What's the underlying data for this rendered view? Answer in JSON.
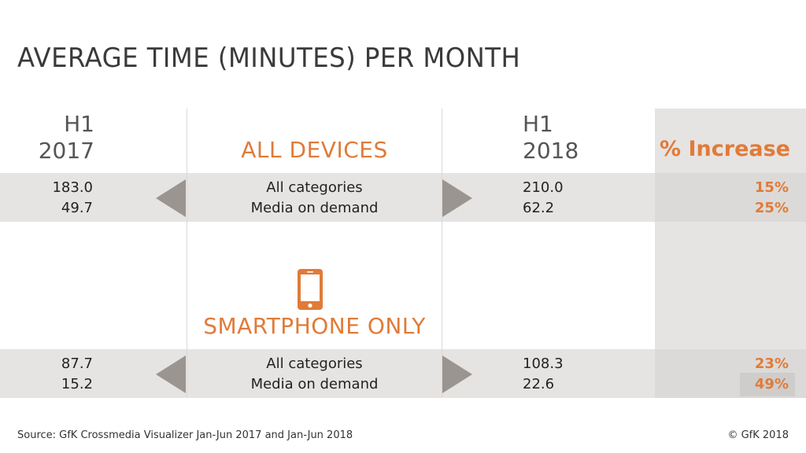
{
  "title": "AVERAGE TIME (MINUTES) PER MONTH",
  "chart_data": {
    "type": "table",
    "columns": {
      "period_1": [
        "H1",
        "2017"
      ],
      "period_2": [
        "H1",
        "2018"
      ],
      "increase": "% Increase"
    },
    "sections": [
      {
        "label": "ALL DEVICES",
        "rows": [
          {
            "category": "All categories",
            "h1_2017": "183.0",
            "h1_2018": "210.0",
            "increase": "15%"
          },
          {
            "category": "Media on demand",
            "h1_2017": "49.7",
            "h1_2018": "62.2",
            "increase": "25%"
          }
        ]
      },
      {
        "label": "SMARTPHONE ONLY",
        "icon": "smartphone-icon",
        "rows": [
          {
            "category": "All categories",
            "h1_2017": "87.7",
            "h1_2018": "108.3",
            "increase": "23%"
          },
          {
            "category": "Media on demand",
            "h1_2017": "15.2",
            "h1_2018": "22.6",
            "increase": "49%"
          }
        ]
      }
    ]
  },
  "colors": {
    "accent": "#e07b39",
    "band": "#e6e4e2",
    "arrow": "#9a9590"
  },
  "footer": {
    "source": "Source: GfK Crossmedia Visualizer Jan-Jun 2017 and Jan-Jun 2018",
    "copyright": "© GfK 2018"
  }
}
